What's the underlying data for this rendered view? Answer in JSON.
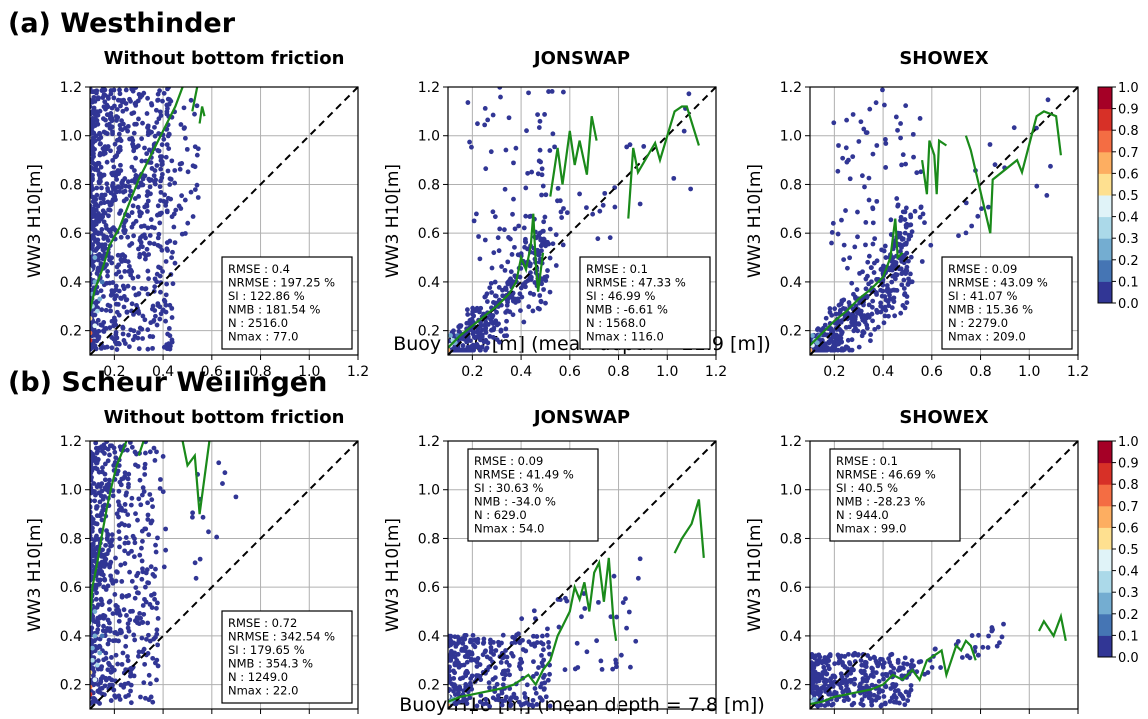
{
  "figure": {
    "row_titles": [
      "(a) Westhinder",
      "(b) Scheur Weilingen"
    ],
    "row_xlabels": [
      "Buoy H10 [m] (mean depth = 21.9 [m])",
      "Buoy H10 [m] (mean depth = 7.8 [m])"
    ]
  },
  "colors": {
    "scatter_low": "#313695",
    "trend_line": "#1a8a1a",
    "one_to_one": "#000000",
    "colorbar": [
      "#313695",
      "#4575b4",
      "#74add1",
      "#abd9e9",
      "#e0f3f8",
      "#fee090",
      "#fdae61",
      "#f46d43",
      "#d73027",
      "#a50026"
    ]
  },
  "colorbar": {
    "ticks": [
      "0.0",
      "0.1",
      "0.2",
      "0.3",
      "0.4",
      "0.5",
      "0.6",
      "0.7",
      "0.8",
      "0.9",
      "1.0"
    ]
  },
  "chart_data": [
    {
      "type": "scatter",
      "panel": "a1",
      "title": "Without bottom friction",
      "ylabel": "WW3 H10[m]",
      "xlim": [
        0.1,
        1.2
      ],
      "ylim": [
        0.1,
        1.2
      ],
      "xticks": [
        "0.2",
        "0.4",
        "0.6",
        "0.8",
        "1.0",
        "1.2"
      ],
      "yticks": [
        "0.2",
        "0.4",
        "0.6",
        "0.8",
        "1.0",
        "1.2"
      ],
      "stats": [
        "RMSE  : 0.4",
        "NRMSE : 197.25 %",
        "SI     : 122.86 %",
        "NMB   : 181.54 %",
        "N       : 2516.0",
        "Nmax  : 77.0"
      ],
      "stats_pos": "bottom-right",
      "trend": [
        [
          0.1,
          0.28
        ],
        [
          0.12,
          0.37
        ],
        [
          0.15,
          0.45
        ],
        [
          0.18,
          0.55
        ],
        [
          0.22,
          0.62
        ],
        [
          0.26,
          0.72
        ],
        [
          0.3,
          0.82
        ],
        [
          0.35,
          0.92
        ],
        [
          0.4,
          1.02
        ],
        [
          0.45,
          1.12
        ],
        [
          0.48,
          1.2
        ]
      ],
      "trend2": [
        [
          0.52,
          1.1
        ],
        [
          0.54,
          1.2
        ]
      ],
      "trend3": [
        [
          0.55,
          1.05
        ],
        [
          0.56,
          1.12
        ],
        [
          0.57,
          1.08
        ]
      ]
    },
    {
      "type": "scatter",
      "panel": "a2",
      "title": "JONSWAP",
      "ylabel": "WW3 H10[m]",
      "xlim": [
        0.1,
        1.2
      ],
      "ylim": [
        0.1,
        1.2
      ],
      "xticks": [
        "0.2",
        "0.4",
        "0.6",
        "0.8",
        "1.0",
        "1.2"
      ],
      "yticks": [
        "0.2",
        "0.4",
        "0.6",
        "0.8",
        "1.0",
        "1.2"
      ],
      "stats": [
        "RMSE  : 0.1",
        "NRMSE : 47.33 %",
        "SI     : 46.99 %",
        "NMB   : -6.61 %",
        "N       : 1568.0",
        "Nmax  : 116.0"
      ],
      "stats_pos": "bottom-right",
      "trend": [
        [
          0.1,
          0.13
        ],
        [
          0.15,
          0.18
        ],
        [
          0.2,
          0.22
        ],
        [
          0.25,
          0.26
        ],
        [
          0.3,
          0.3
        ],
        [
          0.35,
          0.35
        ],
        [
          0.38,
          0.4
        ],
        [
          0.4,
          0.5
        ],
        [
          0.42,
          0.45
        ],
        [
          0.44,
          0.55
        ],
        [
          0.45,
          0.68
        ],
        [
          0.46,
          0.48
        ],
        [
          0.47,
          0.36
        ],
        [
          0.49,
          0.52
        ]
      ],
      "trend2": [
        [
          0.52,
          0.75
        ],
        [
          0.55,
          0.95
        ],
        [
          0.57,
          0.8
        ],
        [
          0.6,
          1.02
        ],
        [
          0.62,
          0.88
        ],
        [
          0.64,
          0.98
        ],
        [
          0.67,
          0.84
        ],
        [
          0.69,
          1.08
        ],
        [
          0.71,
          0.98
        ]
      ],
      "trend3": [
        [
          0.84,
          0.66
        ],
        [
          0.86,
          0.95
        ],
        [
          0.88,
          0.85
        ],
        [
          0.95,
          0.97
        ],
        [
          0.97,
          0.9
        ],
        [
          1.03,
          1.1
        ],
        [
          1.06,
          1.12
        ],
        [
          1.08,
          1.12
        ],
        [
          1.13,
          0.96
        ]
      ]
    },
    {
      "type": "scatter",
      "panel": "a3",
      "title": "SHOWEX",
      "ylabel": "WW3 H10[m]",
      "xlim": [
        0.1,
        1.2
      ],
      "ylim": [
        0.1,
        1.2
      ],
      "xticks": [
        "0.2",
        "0.4",
        "0.6",
        "0.8",
        "1.0",
        "1.2"
      ],
      "yticks": [
        "0.2",
        "0.4",
        "0.6",
        "0.8",
        "1.0",
        "1.2"
      ],
      "stats": [
        "RMSE  : 0.09",
        "NRMSE : 43.09 %",
        "SI     : 41.07 %",
        "NMB   : 15.36 %",
        "N       : 2279.0",
        "Nmax  : 209.0"
      ],
      "stats_pos": "bottom-right",
      "trend": [
        [
          0.1,
          0.14
        ],
        [
          0.15,
          0.19
        ],
        [
          0.2,
          0.24
        ],
        [
          0.25,
          0.28
        ],
        [
          0.3,
          0.33
        ],
        [
          0.35,
          0.37
        ],
        [
          0.4,
          0.42
        ],
        [
          0.43,
          0.5
        ],
        [
          0.44,
          0.58
        ],
        [
          0.45,
          0.66
        ],
        [
          0.46,
          0.5
        ],
        [
          0.48,
          0.52
        ]
      ],
      "trend2": [
        [
          0.56,
          0.9
        ],
        [
          0.58,
          0.76
        ],
        [
          0.59,
          0.98
        ],
        [
          0.61,
          0.92
        ],
        [
          0.62,
          0.76
        ],
        [
          0.63,
          0.98
        ],
        [
          0.66,
          0.96
        ]
      ],
      "trend3": [
        [
          0.74,
          1.0
        ],
        [
          0.76,
          0.94
        ],
        [
          0.84,
          0.6
        ],
        [
          0.85,
          0.82
        ],
        [
          0.95,
          0.9
        ],
        [
          0.97,
          0.85
        ],
        [
          1.03,
          1.08
        ],
        [
          1.06,
          1.1
        ],
        [
          1.11,
          1.08
        ],
        [
          1.13,
          0.92
        ]
      ]
    },
    {
      "type": "scatter",
      "panel": "b1",
      "title": "Without bottom friction",
      "ylabel": "WW3 H10[m]",
      "xlim": [
        0.1,
        1.2
      ],
      "ylim": [
        0.1,
        1.2
      ],
      "xticks": [
        "0.2",
        "0.4",
        "0.6",
        "0.8",
        "1.0",
        "1.2"
      ],
      "yticks": [
        "0.2",
        "0.4",
        "0.6",
        "0.8",
        "1.0",
        "1.2"
      ],
      "stats": [
        "RMSE  : 0.72",
        "NRMSE : 342.54 %",
        "SI     : 179.65 %",
        "NMB   : 354.3 %",
        "N       : 1249.0",
        "Nmax  : 22.0"
      ],
      "stats_pos": "bottom-right",
      "trend": [
        [
          0.1,
          0.45
        ],
        [
          0.11,
          0.6
        ],
        [
          0.13,
          0.7
        ],
        [
          0.15,
          0.82
        ],
        [
          0.17,
          0.93
        ],
        [
          0.19,
          1.02
        ],
        [
          0.21,
          1.1
        ],
        [
          0.23,
          1.15
        ],
        [
          0.25,
          1.2
        ]
      ],
      "trend2": [
        [
          0.3,
          1.14
        ],
        [
          0.32,
          1.2
        ]
      ],
      "trend3": [
        [
          0.48,
          1.2
        ],
        [
          0.5,
          1.1
        ],
        [
          0.53,
          1.14
        ],
        [
          0.55,
          0.9
        ],
        [
          0.59,
          1.2
        ]
      ]
    },
    {
      "type": "scatter",
      "panel": "b2",
      "title": "JONSWAP",
      "ylabel": "WW3 H10[m]",
      "xlim": [
        0.1,
        1.2
      ],
      "ylim": [
        0.1,
        1.2
      ],
      "xticks": [
        "0.2",
        "0.4",
        "0.6",
        "0.8",
        "1.0",
        "1.2"
      ],
      "yticks": [
        "0.2",
        "0.4",
        "0.6",
        "0.8",
        "1.0",
        "1.2"
      ],
      "stats": [
        "RMSE  : 0.09",
        "NRMSE : 41.49 %",
        "SI     : 30.63 %",
        "NMB   : -34.0 %",
        "N       : 629.0",
        "Nmax  : 54.0"
      ],
      "stats_pos": "top-left",
      "trend": [
        [
          0.1,
          0.13
        ],
        [
          0.15,
          0.15
        ],
        [
          0.2,
          0.16
        ],
        [
          0.25,
          0.17
        ],
        [
          0.3,
          0.18
        ],
        [
          0.34,
          0.19
        ],
        [
          0.37,
          0.2
        ],
        [
          0.4,
          0.22
        ],
        [
          0.43,
          0.24
        ],
        [
          0.46,
          0.2
        ],
        [
          0.49,
          0.26
        ],
        [
          0.52,
          0.3
        ],
        [
          0.55,
          0.4
        ],
        [
          0.57,
          0.44
        ],
        [
          0.6,
          0.5
        ],
        [
          0.62,
          0.6
        ],
        [
          0.64,
          0.55
        ],
        [
          0.66,
          0.62
        ],
        [
          0.68,
          0.5
        ],
        [
          0.7,
          0.66
        ],
        [
          0.72,
          0.7
        ],
        [
          0.74,
          0.54
        ],
        [
          0.76,
          0.72
        ],
        [
          0.78,
          0.45
        ],
        [
          0.79,
          0.38
        ]
      ],
      "trend2": [
        [
          1.03,
          0.74
        ],
        [
          1.06,
          0.8
        ],
        [
          1.1,
          0.86
        ],
        [
          1.13,
          0.96
        ],
        [
          1.15,
          0.72
        ]
      ]
    },
    {
      "type": "scatter",
      "panel": "b3",
      "title": "SHOWEX",
      "ylabel": "WW3 H10[m]",
      "xlim": [
        0.1,
        1.2
      ],
      "ylim": [
        0.1,
        1.2
      ],
      "xticks": [
        "0.2",
        "0.4",
        "0.6",
        "0.8",
        "1.0",
        "1.2"
      ],
      "yticks": [
        "0.2",
        "0.4",
        "0.6",
        "0.8",
        "1.0",
        "1.2"
      ],
      "stats": [
        "RMSE  : 0.1",
        "NRMSE : 46.69 %",
        "SI     : 40.5 %",
        "NMB   : -28.23 %",
        "N       : 944.0",
        "Nmax  : 99.0"
      ],
      "stats_pos": "top-left",
      "trend": [
        [
          0.1,
          0.12
        ],
        [
          0.15,
          0.13
        ],
        [
          0.2,
          0.15
        ],
        [
          0.25,
          0.16
        ],
        [
          0.3,
          0.17
        ],
        [
          0.35,
          0.18
        ],
        [
          0.4,
          0.2
        ],
        [
          0.44,
          0.24
        ],
        [
          0.48,
          0.22
        ],
        [
          0.52,
          0.26
        ],
        [
          0.55,
          0.22
        ],
        [
          0.58,
          0.3
        ],
        [
          0.61,
          0.32
        ],
        [
          0.64,
          0.34
        ],
        [
          0.66,
          0.24
        ],
        [
          0.68,
          0.3
        ],
        [
          0.7,
          0.36
        ],
        [
          0.72,
          0.34
        ],
        [
          0.74,
          0.38
        ],
        [
          0.76,
          0.36
        ],
        [
          0.78,
          0.3
        ]
      ],
      "trend2": [
        [
          1.04,
          0.42
        ],
        [
          1.06,
          0.46
        ],
        [
          1.1,
          0.4
        ],
        [
          1.13,
          0.48
        ],
        [
          1.15,
          0.38
        ]
      ]
    }
  ]
}
